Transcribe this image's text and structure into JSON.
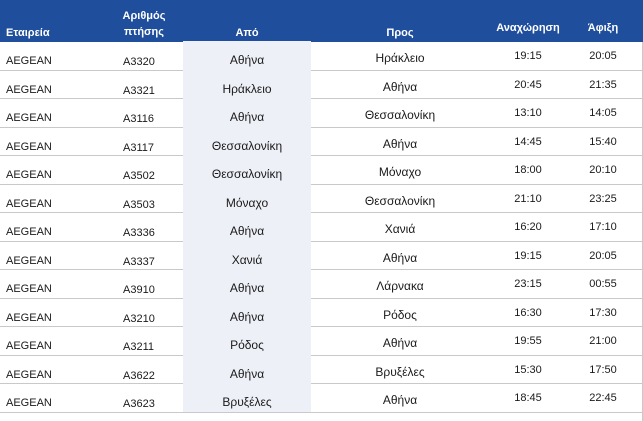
{
  "header": {
    "airline": "Εταιρεία",
    "flight_no": "Αριθμός πτήσης",
    "from": "Από",
    "to": "Προς",
    "departure": "Αναχώρηση",
    "arrival": "Άφιξη"
  },
  "colors": {
    "header_bg": "#1f4e9c",
    "from_column_bg": "#eef0f8"
  },
  "flights": [
    {
      "airline": "AEGEAN",
      "flight": "A3320",
      "from": "Αθήνα",
      "to": "Ηράκλειο",
      "dep": "19:15",
      "arr": "20:05"
    },
    {
      "airline": "AEGEAN",
      "flight": "A3321",
      "from": "Ηράκλειο",
      "to": "Αθήνα",
      "dep": "20:45",
      "arr": "21:35"
    },
    {
      "airline": "AEGEAN",
      "flight": "A3116",
      "from": "Αθήνα",
      "to": "Θεσσαλονίκη",
      "dep": "13:10",
      "arr": "14:05"
    },
    {
      "airline": "AEGEAN",
      "flight": "A3117",
      "from": "Θεσσαλονίκη",
      "to": "Αθήνα",
      "dep": "14:45",
      "arr": "15:40"
    },
    {
      "airline": "AEGEAN",
      "flight": "A3502",
      "from": "Θεσσαλονίκη",
      "to": "Μόναχο",
      "dep": "18:00",
      "arr": "20:10"
    },
    {
      "airline": "AEGEAN",
      "flight": "A3503",
      "from": "Μόναχο",
      "to": "Θεσσαλονίκη",
      "dep": "21:10",
      "arr": "23:25"
    },
    {
      "airline": "AEGEAN",
      "flight": "A3336",
      "from": "Αθήνα",
      "to": "Χανιά",
      "dep": "16:20",
      "arr": "17:10"
    },
    {
      "airline": "AEGEAN",
      "flight": "A3337",
      "from": "Χανιά",
      "to": "Αθήνα",
      "dep": "19:15",
      "arr": "20:05"
    },
    {
      "airline": "AEGEAN",
      "flight": "A3910",
      "from": "Αθήνα",
      "to": "Λάρνακα",
      "dep": "23:15",
      "arr": "00:55"
    },
    {
      "airline": "AEGEAN",
      "flight": "A3210",
      "from": "Αθήνα",
      "to": "Ρόδος",
      "dep": "16:30",
      "arr": "17:30"
    },
    {
      "airline": "AEGEAN",
      "flight": "A3211",
      "from": "Ρόδος",
      "to": "Αθήνα",
      "dep": "19:55",
      "arr": "21:00"
    },
    {
      "airline": "AEGEAN",
      "flight": "A3622",
      "from": "Αθήνα",
      "to": "Βρυξέλες",
      "dep": "15:30",
      "arr": "17:50"
    },
    {
      "airline": "AEGEAN",
      "flight": "A3623",
      "from": "Βρυξέλες",
      "to": "Αθήνα",
      "dep": "18:45",
      "arr": "22:45"
    }
  ]
}
